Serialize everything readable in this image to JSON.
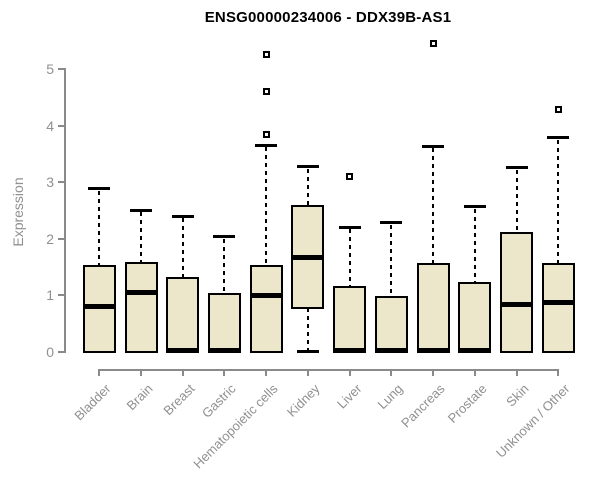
{
  "title": "ENSG00000234006 - DDX39B-AS1",
  "colors": {
    "box_fill": "#ECE7CB",
    "box_border": "#000000",
    "axis": "#8a8a8a",
    "label_gray": "#909090",
    "title_color": "#000000",
    "background": "#ffffff"
  },
  "chart_data": {
    "type": "boxplot",
    "title": "ENSG00000234006 - DDX39B-AS1",
    "xlabel": "",
    "ylabel": "Expression",
    "ylim": [
      0,
      5.5
    ],
    "yticks": [
      0,
      1,
      2,
      3,
      4,
      5
    ],
    "grid": false,
    "legend": "none",
    "categories": [
      "Bladder",
      "Brain",
      "Breast",
      "Gastric",
      "Hematopoietic cells",
      "Kidney",
      "Liver",
      "Lung",
      "Pancreas",
      "Prostate",
      "Skin",
      "Unknown / Other"
    ],
    "series": [
      {
        "name": "Bladder",
        "whisker_low": 0,
        "q1": 0,
        "median": 0.8,
        "q3": 1.52,
        "whisker_high": 2.88,
        "outliers": []
      },
      {
        "name": "Brain",
        "whisker_low": 0,
        "q1": 0,
        "median": 1.05,
        "q3": 1.57,
        "whisker_high": 2.5,
        "outliers": []
      },
      {
        "name": "Breast",
        "whisker_low": 0,
        "q1": 0,
        "median": 0.03,
        "q3": 1.31,
        "whisker_high": 2.4,
        "outliers": []
      },
      {
        "name": "Gastric",
        "whisker_low": 0,
        "q1": 0,
        "median": 0.03,
        "q3": 1.02,
        "whisker_high": 2.03,
        "outliers": []
      },
      {
        "name": "Hematopoietic cells",
        "whisker_low": 0,
        "q1": 0,
        "median": 1.0,
        "q3": 1.52,
        "whisker_high": 3.65,
        "outliers": [
          3.85,
          4.6,
          5.25
        ]
      },
      {
        "name": "Kidney",
        "whisker_low": 0,
        "q1": 0.78,
        "median": 1.67,
        "q3": 2.58,
        "whisker_high": 3.27,
        "outliers": []
      },
      {
        "name": "Liver",
        "whisker_low": 0,
        "q1": 0,
        "median": 0.03,
        "q3": 1.14,
        "whisker_high": 2.2,
        "outliers": [
          3.1
        ]
      },
      {
        "name": "Lung",
        "whisker_low": 0,
        "q1": 0,
        "median": 0.03,
        "q3": 0.97,
        "whisker_high": 2.28,
        "outliers": []
      },
      {
        "name": "Pancreas",
        "whisker_low": 0,
        "q1": 0,
        "median": 0.03,
        "q3": 1.55,
        "whisker_high": 3.63,
        "outliers": [
          5.45
        ]
      },
      {
        "name": "Prostate",
        "whisker_low": 0,
        "q1": 0,
        "median": 0.03,
        "q3": 1.21,
        "whisker_high": 2.56,
        "outliers": []
      },
      {
        "name": "Skin",
        "whisker_low": 0,
        "q1": 0,
        "median": 0.84,
        "q3": 2.1,
        "whisker_high": 3.25,
        "outliers": []
      },
      {
        "name": "Unknown / Other",
        "whisker_low": 0,
        "q1": 0,
        "median": 0.87,
        "q3": 1.55,
        "whisker_high": 3.78,
        "outliers": [
          4.28
        ]
      }
    ]
  }
}
